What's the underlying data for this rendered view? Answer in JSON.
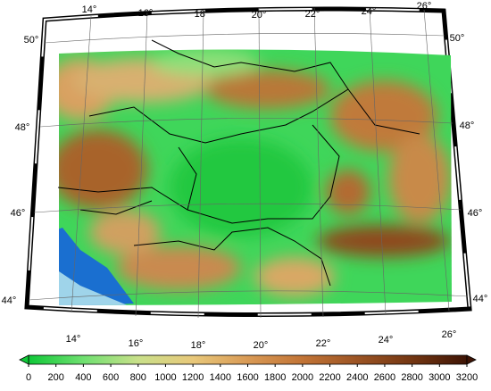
{
  "map": {
    "lon_labels_top": [
      "14°",
      "16°",
      "18°",
      "20°",
      "22°",
      "24°",
      "26°"
    ],
    "lon_labels_bottom": [
      "14°",
      "16°",
      "18°",
      "20°",
      "22°",
      "24°",
      "26°"
    ],
    "lat_labels_left": [
      "50°",
      "48°",
      "46°",
      "44°"
    ],
    "lat_labels_right": [
      "50°",
      "48°",
      "46°",
      "44°"
    ]
  },
  "colorbar": {
    "lim": [
      0,
      3200
    ],
    "ticks": [
      0,
      200,
      400,
      600,
      800,
      1000,
      1200,
      1400,
      1600,
      1800,
      2000,
      2200,
      2400,
      2600,
      2800,
      3000,
      3200
    ],
    "colors": [
      "#10c838",
      "#6fe070",
      "#c9e08a",
      "#e8c87a",
      "#d99a55",
      "#c27436",
      "#9c5424",
      "#733612",
      "#3e1405"
    ]
  }
}
